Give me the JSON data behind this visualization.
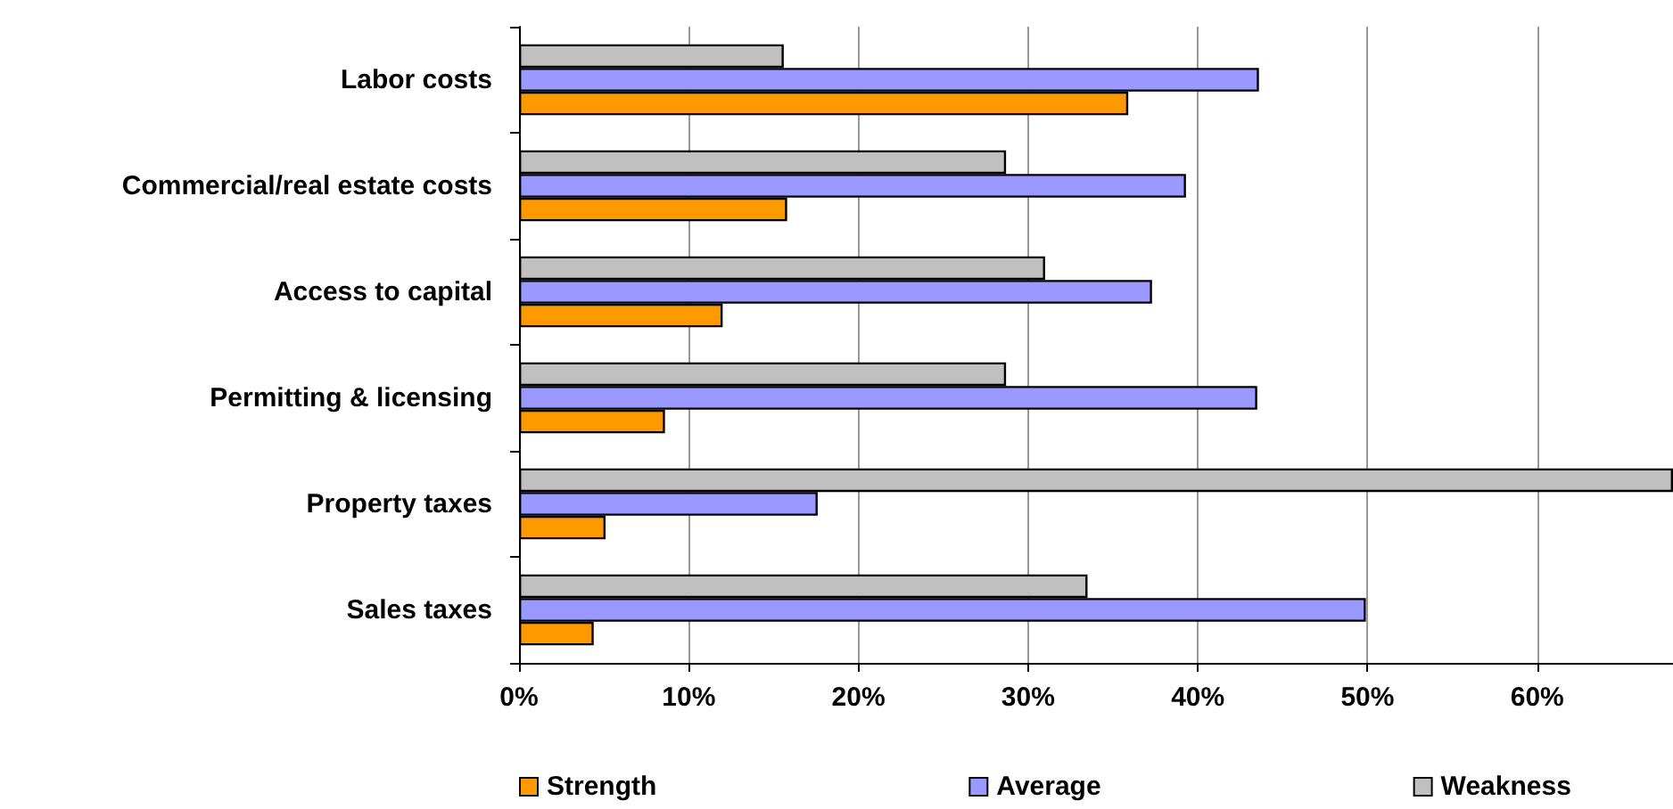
{
  "chart_data": {
    "type": "bar",
    "orientation": "horizontal",
    "categories": [
      "Labor costs",
      "Commercial/real estate costs",
      "Access to capital",
      "Permitting & licensing",
      "Property taxes",
      "Sales taxes"
    ],
    "series": [
      {
        "name": "Strength",
        "color": "#ff9900",
        "values": [
          35.9,
          15.8,
          12.0,
          8.6,
          5.1,
          4.4
        ]
      },
      {
        "name": "Average",
        "color": "#9999ff",
        "values": [
          43.6,
          39.3,
          37.3,
          43.5,
          17.6,
          49.9
        ]
      },
      {
        "name": "Weakness",
        "color": "#c0c0c0",
        "values": [
          15.6,
          28.7,
          31.0,
          28.7,
          68,
          33.5
        ]
      }
    ],
    "xlim": [
      0,
      68
    ],
    "xticks": [
      {
        "value": 0,
        "label": "0%"
      },
      {
        "value": 10,
        "label": "10%"
      },
      {
        "value": 20,
        "label": "20%"
      },
      {
        "value": 30,
        "label": "30%"
      },
      {
        "value": 40,
        "label": "40%"
      },
      {
        "value": 50,
        "label": "50%"
      },
      {
        "value": 60,
        "label": "60%"
      }
    ],
    "grid": "x",
    "legend": "bottom"
  }
}
